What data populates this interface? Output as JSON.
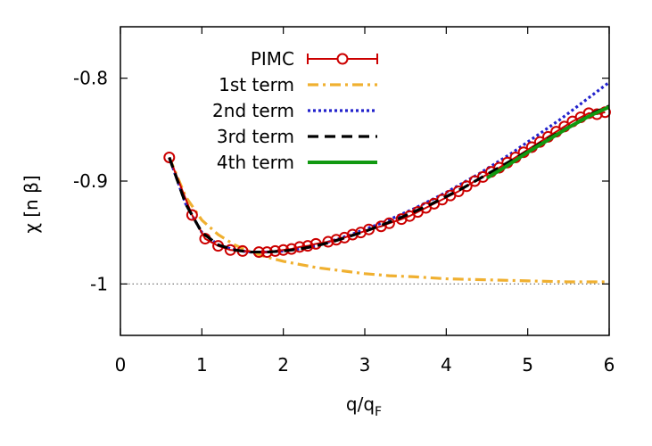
{
  "chart_data": {
    "type": "line",
    "title": "",
    "xlabel": "q/q",
    "xlabel_sub": "F",
    "ylabel": "χ [n β]",
    "xlim": [
      0,
      6
    ],
    "ylim": [
      -1.05,
      -0.75
    ],
    "x_ticks": [
      0,
      1,
      2,
      3,
      4,
      5,
      6
    ],
    "x_tick_labels": [
      "0",
      "1",
      "2",
      "3",
      "4",
      "5",
      "6"
    ],
    "y_ticks": [
      -0.8,
      -0.9,
      -1.0
    ],
    "y_tick_labels": [
      "-0.8",
      "-0.9",
      "-1"
    ],
    "reference_line": {
      "y": -1.0,
      "style": "dotted",
      "color": "#666666"
    },
    "legend_position": "top-left",
    "series": [
      {
        "name": "PIMC",
        "style": "points-errorbars",
        "color": "#cc0000",
        "x": [
          0.6,
          0.88,
          1.04,
          1.2,
          1.35,
          1.5,
          1.7,
          1.8,
          1.9,
          2.0,
          2.1,
          2.2,
          2.3,
          2.4,
          2.55,
          2.65,
          2.75,
          2.85,
          2.95,
          3.05,
          3.2,
          3.3,
          3.45,
          3.55,
          3.65,
          3.75,
          3.85,
          3.95,
          4.05,
          4.15,
          4.25,
          4.35,
          4.45,
          4.55,
          4.65,
          4.75,
          4.85,
          4.95,
          5.05,
          5.15,
          5.25,
          5.35,
          5.45,
          5.55,
          5.65,
          5.75,
          5.85,
          5.95
        ],
        "y": [
          -0.877,
          -0.933,
          -0.956,
          -0.963,
          -0.967,
          -0.968,
          -0.969,
          -0.969,
          -0.968,
          -0.967,
          -0.966,
          -0.964,
          -0.963,
          -0.961,
          -0.959,
          -0.957,
          -0.955,
          -0.952,
          -0.95,
          -0.947,
          -0.944,
          -0.941,
          -0.937,
          -0.934,
          -0.93,
          -0.926,
          -0.922,
          -0.918,
          -0.914,
          -0.91,
          -0.905,
          -0.9,
          -0.896,
          -0.891,
          -0.887,
          -0.882,
          -0.877,
          -0.872,
          -0.867,
          -0.862,
          -0.857,
          -0.852,
          -0.847,
          -0.842,
          -0.838,
          -0.834,
          -0.835,
          -0.833
        ]
      },
      {
        "name": "1st term",
        "style": "dash-dot",
        "color": "#f0b030",
        "x": [
          0.6,
          0.8,
          1.0,
          1.2,
          1.4,
          1.6,
          1.8,
          2.0,
          2.2,
          2.4,
          2.6,
          2.8,
          3.0,
          3.3,
          3.6,
          4.0,
          4.5,
          5.0,
          5.5,
          6.0
        ],
        "y": [
          -0.877,
          -0.915,
          -0.938,
          -0.952,
          -0.962,
          -0.969,
          -0.974,
          -0.978,
          -0.981,
          -0.984,
          -0.986,
          -0.988,
          -0.99,
          -0.992,
          -0.993,
          -0.995,
          -0.996,
          -0.997,
          -0.998,
          -0.998
        ]
      },
      {
        "name": "2nd term",
        "style": "dotted",
        "color": "#2222cc",
        "x": [
          0.6,
          0.8,
          1.0,
          1.2,
          1.4,
          1.6,
          1.8,
          2.0,
          2.2,
          2.4,
          2.6,
          2.8,
          3.0,
          3.2,
          3.4,
          3.6,
          3.8,
          4.0,
          4.2,
          4.4,
          4.6,
          4.8,
          5.0,
          5.2,
          5.4,
          5.6,
          5.8,
          6.0
        ],
        "y": [
          -0.877,
          -0.922,
          -0.95,
          -0.962,
          -0.967,
          -0.969,
          -0.969,
          -0.968,
          -0.966,
          -0.963,
          -0.958,
          -0.953,
          -0.947,
          -0.941,
          -0.934,
          -0.927,
          -0.919,
          -0.911,
          -0.902,
          -0.893,
          -0.883,
          -0.873,
          -0.862,
          -0.851,
          -0.84,
          -0.828,
          -0.816,
          -0.804
        ]
      },
      {
        "name": "3rd term",
        "style": "dashed",
        "color": "#000000",
        "x": [
          0.6,
          0.8,
          1.0,
          1.2,
          1.4,
          1.6,
          1.8,
          2.0,
          2.2,
          2.4,
          2.6,
          2.8,
          3.0,
          3.2,
          3.4,
          3.6,
          3.8,
          4.0,
          4.2,
          4.4,
          4.6,
          4.8,
          5.0,
          5.2,
          5.4,
          5.6,
          5.8,
          6.0
        ],
        "y": [
          -0.877,
          -0.922,
          -0.95,
          -0.962,
          -0.967,
          -0.969,
          -0.969,
          -0.968,
          -0.966,
          -0.963,
          -0.959,
          -0.954,
          -0.949,
          -0.943,
          -0.937,
          -0.93,
          -0.923,
          -0.915,
          -0.907,
          -0.898,
          -0.889,
          -0.88,
          -0.871,
          -0.861,
          -0.852,
          -0.843,
          -0.834,
          -0.827
        ]
      },
      {
        "name": "4th term",
        "style": "solid",
        "color": "#119911",
        "x": [
          4.5,
          4.75,
          5.0,
          5.25,
          5.5,
          5.75,
          6.0
        ],
        "y": [
          -0.897,
          -0.885,
          -0.872,
          -0.86,
          -0.848,
          -0.837,
          -0.828
        ]
      }
    ]
  }
}
